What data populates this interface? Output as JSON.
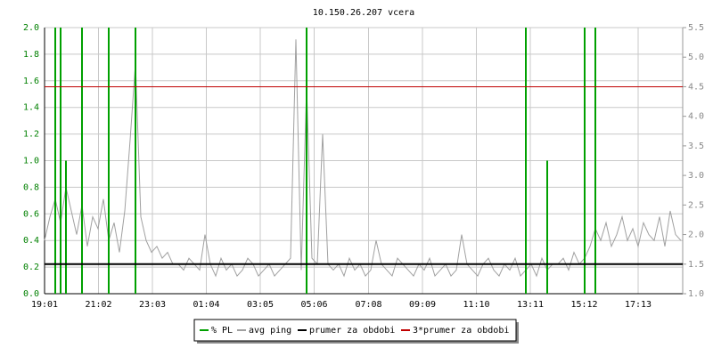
{
  "chart_data": {
    "type": "line",
    "title": "10.150.26.207 vcera",
    "x": [
      0,
      12,
      24,
      36,
      48,
      60,
      72,
      84,
      96,
      108,
      120,
      132,
      144,
      156,
      168,
      180,
      192,
      204,
      216,
      228,
      240,
      252,
      264,
      276,
      288,
      300,
      312,
      324,
      336,
      348,
      360,
      372,
      384,
      396,
      408,
      420,
      432,
      444,
      456,
      468,
      480,
      492,
      504,
      516,
      528,
      540,
      552,
      564,
      576,
      588,
      600,
      612,
      624,
      636,
      648,
      660,
      672,
      684,
      696,
      708,
      720,
      732,
      744,
      756,
      768,
      780,
      792,
      804,
      816,
      828,
      840,
      852,
      864,
      876,
      888,
      900,
      912,
      924,
      936,
      948,
      960,
      972,
      984,
      996,
      1008,
      1020,
      1032,
      1044,
      1056,
      1068,
      1080,
      1092,
      1104,
      1116,
      1128,
      1140,
      1152,
      1164,
      1176,
      1188,
      1200,
      1212,
      1224,
      1236,
      1248,
      1260,
      1272,
      1284,
      1296,
      1308,
      1320,
      1332,
      1344,
      1356,
      1368,
      1380,
      1392,
      1404,
      1416,
      1428
    ],
    "xlim": [
      0,
      1432
    ],
    "xticks": [
      {
        "value": 0,
        "label": "19:01"
      },
      {
        "value": 121,
        "label": "21:02"
      },
      {
        "value": 242,
        "label": "23:03"
      },
      {
        "value": 363,
        "label": "01:04"
      },
      {
        "value": 484,
        "label": "03:05"
      },
      {
        "value": 605,
        "label": "05:06"
      },
      {
        "value": 727,
        "label": "07:08"
      },
      {
        "value": 848,
        "label": "09:09"
      },
      {
        "value": 969,
        "label": "11:10"
      },
      {
        "value": 1090,
        "label": "13:11"
      },
      {
        "value": 1211,
        "label": "15:12"
      },
      {
        "value": 1332,
        "label": "17:13"
      }
    ],
    "ylim": [
      0,
      2.0
    ],
    "yticks": [
      {
        "value": 0,
        "label": "0.0"
      },
      0.2,
      0.4,
      0.6,
      0.8,
      {
        "value": 1.0,
        "label": "1.0"
      },
      1.2,
      1.4,
      1.6,
      1.8,
      {
        "value": 2.0,
        "label": "2.0"
      }
    ],
    "y2lim": [
      1.0,
      5.5
    ],
    "y2ticks": [
      {
        "value": 1.0,
        "label": "1.0"
      },
      1.5,
      {
        "value": 2.0,
        "label": "2.0"
      },
      2.5,
      {
        "value": 3.0,
        "label": "3.0"
      },
      3.5,
      {
        "value": 4.0,
        "label": "4.0"
      },
      4.5,
      {
        "value": 5.0,
        "label": "5.0"
      },
      5.5
    ],
    "grid": true,
    "series": [
      {
        "name": "% PL",
        "color": "#00a000",
        "style": "impulse",
        "values": [
          0,
          0,
          2.0,
          2.0,
          1.0,
          0,
          0,
          2.0,
          0,
          0,
          0,
          0,
          2.0,
          0,
          0,
          0,
          0,
          2.0,
          0,
          0,
          0,
          0,
          0,
          0,
          0,
          0,
          0,
          0,
          0,
          0,
          0,
          0,
          0,
          0,
          0,
          0,
          0,
          0,
          0,
          0,
          0,
          0,
          0,
          0,
          0,
          0,
          0,
          0,
          0,
          2.0,
          0,
          0,
          0,
          0,
          0,
          0,
          0,
          0,
          0,
          0,
          0,
          0,
          0,
          0,
          0,
          0,
          0,
          0,
          0,
          0,
          0,
          0,
          0,
          0,
          0,
          0,
          0,
          0,
          0,
          0,
          0,
          0,
          0,
          0,
          0,
          0,
          0,
          0,
          0,
          0,
          2.0,
          0,
          0,
          0,
          1.0,
          0,
          0,
          0,
          0,
          0,
          0,
          2.0,
          0,
          2.0,
          0,
          0,
          0,
          0,
          0,
          0,
          0,
          0,
          0,
          0,
          0,
          0,
          0,
          0,
          0,
          0
        ]
      },
      {
        "name": "avg ping",
        "color": "#a0a0a0",
        "axis": "y2",
        "style": "line",
        "values": [
          1.9,
          2.3,
          2.6,
          2.2,
          2.8,
          2.4,
          2.0,
          2.5,
          1.8,
          2.3,
          2.1,
          2.6,
          1.9,
          2.2,
          1.7,
          2.4,
          3.6,
          4.9,
          2.3,
          1.9,
          1.7,
          1.8,
          1.6,
          1.7,
          1.5,
          1.5,
          1.4,
          1.6,
          1.5,
          1.4,
          2.0,
          1.5,
          1.3,
          1.6,
          1.4,
          1.5,
          1.3,
          1.4,
          1.6,
          1.5,
          1.3,
          1.4,
          1.5,
          1.3,
          1.4,
          1.5,
          1.6,
          5.3,
          1.4,
          4.5,
          1.6,
          1.5,
          3.7,
          1.5,
          1.4,
          1.5,
          1.3,
          1.6,
          1.4,
          1.5,
          1.3,
          1.4,
          1.9,
          1.5,
          1.4,
          1.3,
          1.6,
          1.5,
          1.4,
          1.3,
          1.5,
          1.4,
          1.6,
          1.3,
          1.4,
          1.5,
          1.3,
          1.4,
          2.0,
          1.5,
          1.4,
          1.3,
          1.5,
          1.6,
          1.4,
          1.3,
          1.5,
          1.4,
          1.6,
          1.3,
          1.4,
          1.5,
          1.3,
          1.6,
          1.4,
          1.5,
          1.5,
          1.6,
          1.4,
          1.7,
          1.5,
          1.6,
          1.8,
          2.1,
          1.9,
          2.2,
          1.8,
          2.0,
          2.3,
          1.9,
          2.1,
          1.8,
          2.2,
          2.0,
          1.9,
          2.3,
          1.8,
          2.4,
          2.0,
          1.9
        ]
      },
      {
        "name": "prumer za obdobi",
        "color": "#000000",
        "axis": "y2",
        "style": "hline",
        "value": 1.5
      },
      {
        "name": "3*prumer za obdobi",
        "color": "#c00000",
        "axis": "y2",
        "style": "hline",
        "value": 4.5
      }
    ]
  }
}
